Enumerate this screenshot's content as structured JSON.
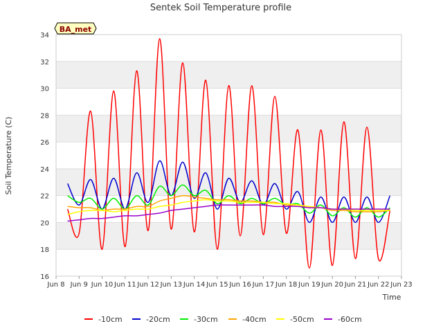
{
  "chart_data": {
    "type": "line",
    "title": "Sentek Soil Temperature profile",
    "xlabel": "Time",
    "ylabel": "Soil Temperature (C)",
    "annotation": "BA_met",
    "x_ticks": [
      "Jun 8",
      "Jun 9",
      "Jun 10",
      "Jun 11",
      "Jun 12",
      "Jun 13",
      "Jun 14",
      "Jun 15",
      "Jun 16",
      "Jun 17",
      "Jun 18",
      "Jun 19",
      "Jun 20",
      "Jun 21",
      "Jun 22",
      "Jun 23"
    ],
    "y_ticks": [
      16,
      18,
      20,
      22,
      24,
      26,
      28,
      30,
      32,
      34
    ],
    "xlim": [
      "2023-06-08",
      "2023-06-23"
    ],
    "ylim": [
      16,
      34
    ],
    "grid": true,
    "legend_position": "bottom",
    "x": [
      "2023-06-08 12:00",
      "2023-06-09 00:00",
      "2023-06-09 12:00",
      "2023-06-10 00:00",
      "2023-06-10 12:00",
      "2023-06-11 00:00",
      "2023-06-11 12:00",
      "2023-06-12 00:00",
      "2023-06-12 12:00",
      "2023-06-13 00:00",
      "2023-06-13 12:00",
      "2023-06-14 00:00",
      "2023-06-14 12:00",
      "2023-06-15 00:00",
      "2023-06-15 12:00",
      "2023-06-16 00:00",
      "2023-06-16 12:00",
      "2023-06-17 00:00",
      "2023-06-17 12:00",
      "2023-06-18 00:00",
      "2023-06-18 12:00",
      "2023-06-19 00:00",
      "2023-06-19 12:00",
      "2023-06-20 00:00",
      "2023-06-20 12:00",
      "2023-06-21 00:00",
      "2023-06-21 12:00",
      "2023-06-22 00:00",
      "2023-06-22 12:00"
    ],
    "series": [
      {
        "name": "-10cm",
        "color": "#ff0000",
        "values": [
          21.0,
          19.2,
          28.3,
          18.0,
          29.8,
          18.2,
          31.3,
          19.4,
          33.7,
          19.5,
          31.9,
          19.3,
          30.6,
          18.0,
          30.2,
          19.0,
          30.2,
          19.1,
          29.4,
          19.2,
          26.9,
          16.6,
          26.9,
          16.8,
          27.5,
          17.3,
          27.1,
          17.3,
          20.9
        ]
      },
      {
        "name": "-20cm",
        "color": "#0000cc",
        "values": [
          22.9,
          21.3,
          23.2,
          21.0,
          23.3,
          21.0,
          23.7,
          21.5,
          24.6,
          22.0,
          24.5,
          21.8,
          23.7,
          21.0,
          23.3,
          21.5,
          23.1,
          21.3,
          22.9,
          21.0,
          22.3,
          20.0,
          21.9,
          20.0,
          21.9,
          20.0,
          21.9,
          20.0,
          22.0
        ]
      },
      {
        "name": "-30cm",
        "color": "#00ee00",
        "values": [
          22.0,
          21.5,
          21.8,
          21.0,
          21.8,
          21.0,
          22.0,
          21.3,
          22.7,
          22.0,
          22.8,
          22.0,
          22.4,
          21.4,
          22.0,
          21.4,
          21.8,
          21.4,
          21.8,
          21.3,
          21.4,
          20.7,
          21.3,
          20.5,
          21.1,
          20.4,
          21.1,
          20.4,
          21.1
        ]
      },
      {
        "name": "-40cm",
        "color": "#ffa500",
        "values": [
          21.2,
          21.1,
          21.1,
          20.9,
          21.0,
          21.0,
          21.2,
          21.2,
          21.6,
          21.8,
          22.0,
          21.9,
          21.8,
          21.7,
          21.7,
          21.6,
          21.6,
          21.5,
          21.5,
          21.3,
          21.3,
          21.1,
          21.1,
          20.9,
          20.9,
          20.8,
          20.8,
          20.8,
          20.9
        ]
      },
      {
        "name": "-50cm",
        "color": "#ffff00",
        "values": [
          20.6,
          20.8,
          20.9,
          20.9,
          20.8,
          20.9,
          21.0,
          21.0,
          21.2,
          21.3,
          21.5,
          21.6,
          21.7,
          21.6,
          21.6,
          21.5,
          21.5,
          21.5,
          21.4,
          21.4,
          21.3,
          21.2,
          21.1,
          21.0,
          21.0,
          20.9,
          20.9,
          20.9,
          20.9
        ]
      },
      {
        "name": "-60cm",
        "color": "#9900cc",
        "values": [
          20.1,
          20.2,
          20.3,
          20.3,
          20.4,
          20.5,
          20.5,
          20.6,
          20.7,
          20.9,
          21.0,
          21.1,
          21.2,
          21.3,
          21.3,
          21.3,
          21.3,
          21.3,
          21.2,
          21.2,
          21.2,
          21.1,
          21.1,
          21.0,
          21.0,
          21.0,
          21.0,
          21.0,
          21.0
        ]
      }
    ]
  }
}
